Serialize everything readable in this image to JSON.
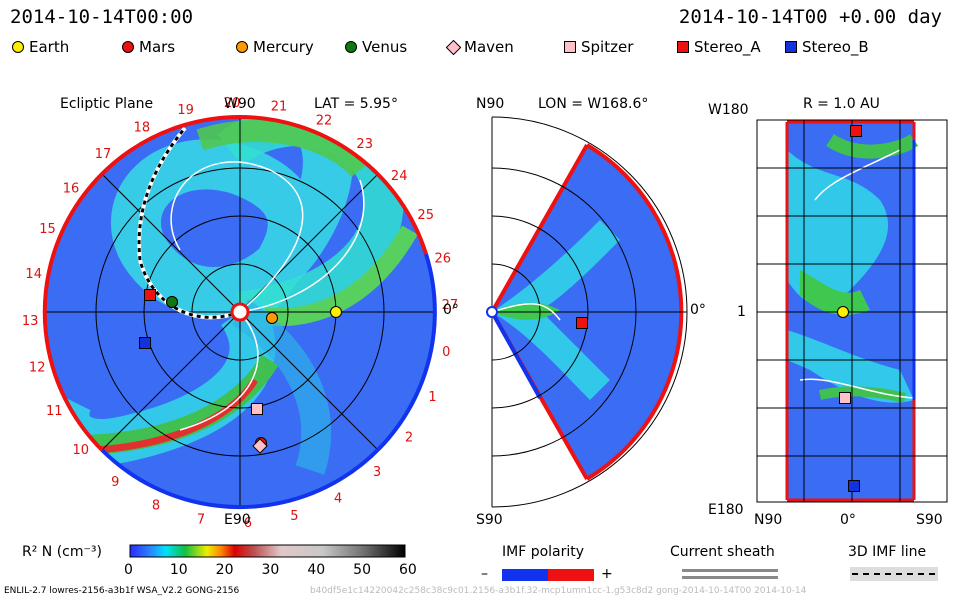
{
  "header": {
    "datetime_left": "2014-10-14T00:00",
    "datetime_right": "2014-10-14T00 +0.00 day"
  },
  "legend": [
    {
      "name": "Earth",
      "shape": "circle",
      "color": "#ffee00"
    },
    {
      "name": "Mars",
      "shape": "circle",
      "color": "#ee1111"
    },
    {
      "name": "Mercury",
      "shape": "circle",
      "color": "#ff9900"
    },
    {
      "name": "Venus",
      "shape": "circle",
      "color": "#117711"
    },
    {
      "name": "Maven",
      "shape": "diamond",
      "color": "#ffc0c8"
    },
    {
      "name": "Spitzer",
      "shape": "square",
      "color": "#ffc0c8"
    },
    {
      "name": "Stereo_A",
      "shape": "square",
      "color": "#ee1111"
    },
    {
      "name": "Stereo_B",
      "shape": "square",
      "color": "#1133dd"
    }
  ],
  "panels": {
    "ecliptic": {
      "title": "Ecliptic Plane",
      "lat_label": "LAT = 5.95°",
      "top_label": "W90",
      "bottom_label": "E90",
      "right_label": "0°"
    },
    "meridional": {
      "top_label": "N90",
      "bottom_label": "S90",
      "lon_label": "LON = W168.6°",
      "right_label": "0°"
    },
    "radial": {
      "r_label": "R = 1.0 AU",
      "top_left": "W180",
      "bottom_left": "E180",
      "mid_left": "1",
      "x_left": "N90",
      "x_mid": "0°",
      "x_right": "S90"
    }
  },
  "rotation_labels": [
    "19",
    "20",
    "21",
    "22",
    "23",
    "24",
    "25",
    "26",
    "27",
    "0",
    "1",
    "2",
    "3",
    "4",
    "5",
    "6",
    "7",
    "8",
    "9",
    "10",
    "11",
    "12",
    "13",
    "14",
    "15",
    "16",
    "17",
    "18"
  ],
  "colorbar": {
    "label": "R² N (cm⁻³)",
    "ticks": [
      "0",
      "10",
      "20",
      "30",
      "40",
      "50",
      "60"
    ]
  },
  "imf_polarity": {
    "label": "IMF polarity",
    "minus": "–",
    "plus": "+"
  },
  "current_sheath": {
    "label": "Current sheath"
  },
  "imf_line": {
    "label": "3D IMF line"
  },
  "footer": {
    "left": "ENLIL-2.7 lowres-2156-a3b1f WSA_V2.2 GONG-2156",
    "right": "b40df5e1c14220042c258c38c9c01.2156-a3b1f.32-mcp1umn1cc-1.g53c8d2 gong-2014-10-14T00    2014-10-14"
  },
  "chart_data": {
    "type": "heatmap",
    "quantity": "R² N (cm⁻³)",
    "colorbar_range": [
      0,
      60
    ],
    "time": "2014-10-14T00:00",
    "ecliptic_latitude_deg": 5.95,
    "meridional_longitude": "W168.6",
    "radial_distance_au": 1.0,
    "bodies": [
      "Earth",
      "Mars",
      "Mercury",
      "Venus",
      "Maven",
      "Spitzer",
      "Stereo_A",
      "Stereo_B"
    ]
  }
}
